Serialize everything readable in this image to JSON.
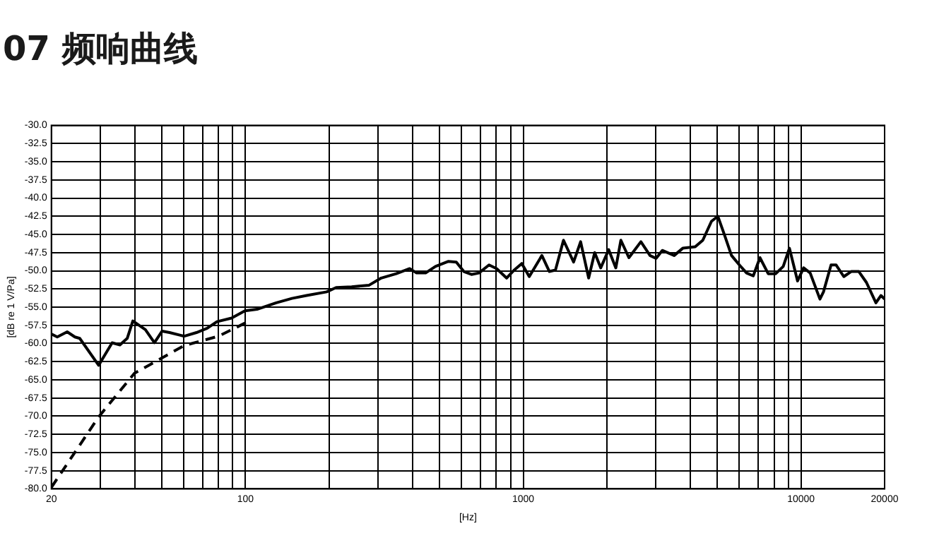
{
  "chart_data": {
    "type": "line",
    "title": "07 频响曲线",
    "xlabel": "[Hz]",
    "ylabel": "[dB re 1 V/Pa]",
    "log": "x",
    "grid": true,
    "legend": false,
    "marker": "none",
    "xlim": [
      20,
      20000
    ],
    "xticks": [
      20,
      {
        "value": 30,
        "label": null
      },
      {
        "value": 40,
        "label": null
      },
      {
        "value": 50,
        "label": null
      },
      {
        "value": 60,
        "label": null
      },
      {
        "value": 70,
        "label": null
      },
      {
        "value": 80,
        "label": null
      },
      {
        "value": 90,
        "label": null
      },
      100,
      {
        "value": 200,
        "label": null
      },
      {
        "value": 300,
        "label": null
      },
      {
        "value": 400,
        "label": null
      },
      {
        "value": 500,
        "label": null
      },
      {
        "value": 600,
        "label": null
      },
      {
        "value": 700,
        "label": null
      },
      {
        "value": 800,
        "label": null
      },
      {
        "value": 900,
        "label": null
      },
      1000,
      {
        "value": 2000,
        "label": null
      },
      {
        "value": 3000,
        "label": null
      },
      {
        "value": 4000,
        "label": null
      },
      {
        "value": 5000,
        "label": null
      },
      {
        "value": 6000,
        "label": null
      },
      {
        "value": 7000,
        "label": null
      },
      {
        "value": 8000,
        "label": null
      },
      {
        "value": 9000,
        "label": null
      },
      10000,
      20000
    ],
    "ylim": [
      -80,
      -30
    ],
    "yticks": [
      {
        "value": -30,
        "label": "-30.0"
      },
      -32.5,
      {
        "value": -35,
        "label": "-35.0"
      },
      -37.5,
      {
        "value": -40,
        "label": "-40.0"
      },
      -42.5,
      {
        "value": -45,
        "label": "-45.0"
      },
      -47.5,
      {
        "value": -50,
        "label": "-50.0"
      },
      -52.5,
      {
        "value": -55,
        "label": "-55.0"
      },
      -57.5,
      {
        "value": -60,
        "label": "-60.0"
      },
      -62.5,
      {
        "value": -65,
        "label": "-65.0"
      },
      -67.5,
      {
        "value": -70,
        "label": "-70.0"
      },
      -72.5,
      {
        "value": -75,
        "label": "-75.0"
      },
      -77.5,
      {
        "value": -80,
        "label": "-80.0"
      }
    ],
    "series": [
      {
        "color": "#000000",
        "line_style": "solid",
        "x": [
          20,
          21,
          22.8,
          24.3,
          25.3,
          29.6,
          33.1,
          35.3,
          37.5,
          39.3,
          43.6,
          47,
          50.1,
          53.3,
          60.2,
          66.6,
          72.8,
          78.9,
          89.1,
          99.5,
          110,
          129,
          147,
          166,
          196,
          212,
          241,
          278,
          308,
          349,
          390,
          413,
          445,
          483,
          538,
          574,
          611,
          651,
          693,
          753,
          802,
          871,
          928,
          988,
          1051,
          1167,
          1242,
          1306,
          1396,
          1518,
          1609,
          1720,
          1808,
          1901,
          2031,
          2154,
          2246,
          2401,
          2652,
          2860,
          3007,
          3167,
          3495,
          3752,
          4160,
          4431,
          4760,
          5020,
          5307,
          5621,
          6000,
          6367,
          6731,
          7116,
          7620,
          8110,
          8630,
          9084,
          9720,
          10220,
          10790,
          11700,
          12050,
          12830,
          13380,
          14260,
          15160,
          16150,
          17200,
          18610,
          19400,
          20000
        ],
        "values": [
          -58.7,
          -59.1,
          -58.4,
          -59.1,
          -59.3,
          -63,
          -59.9,
          -60.2,
          -59.3,
          -56.9,
          -58.1,
          -59.9,
          -58.3,
          -58.5,
          -59,
          -58.5,
          -57.9,
          -57,
          -56.5,
          -55.5,
          -55.3,
          -54.4,
          -53.8,
          -53.4,
          -52.9,
          -52.3,
          -52.2,
          -52,
          -51,
          -50.4,
          -49.7,
          -50.3,
          -50.3,
          -49.4,
          -48.7,
          -48.8,
          -50.1,
          -50.5,
          -50.3,
          -49.2,
          -49.7,
          -51,
          -49.9,
          -49,
          -50.8,
          -47.9,
          -50.1,
          -49.9,
          -45.8,
          -48.8,
          -46,
          -51,
          -47.5,
          -49.6,
          -47.1,
          -49.6,
          -45.8,
          -48.2,
          -46,
          -47.9,
          -48.3,
          -47.2,
          -47.9,
          -46.9,
          -46.7,
          -45.8,
          -43.2,
          -42.5,
          -45.1,
          -47.9,
          -49.2,
          -50.3,
          -50.7,
          -48.2,
          -50.4,
          -50.4,
          -49.4,
          -46.9,
          -51.4,
          -49.6,
          -50.3,
          -53.9,
          -52.9,
          -49.2,
          -49.2,
          -50.8,
          -50.1,
          -50.1,
          -51.6,
          -54.4,
          -53.4,
          -53.9
        ]
      },
      {
        "color": "#000000",
        "line_style": "dashed",
        "x": [
          20,
          29.6,
          39.8,
          50,
          60,
          80,
          102
        ],
        "values": [
          -79.8,
          -70.1,
          -64.1,
          -62,
          -60.3,
          -59,
          -57
        ]
      }
    ]
  }
}
